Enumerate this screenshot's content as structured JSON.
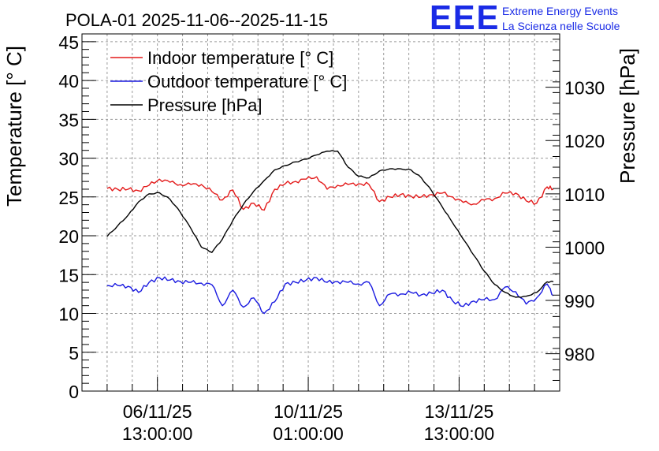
{
  "chart_data": {
    "type": "line",
    "title": "POLA-01 2025-11-06--2025-11-15",
    "ylabel_left": "Temperature [° C]",
    "ylabel_right": "Pressure [hPa]",
    "ylim_left": [
      0,
      46
    ],
    "ylim_right": [
      973,
      1040
    ],
    "yticks_left": [
      "0",
      "5",
      "10",
      "15",
      "20",
      "25",
      "30",
      "35",
      "40",
      "45"
    ],
    "yticks_right": [
      "980",
      "990",
      "1000",
      "1010",
      "1020",
      "1030"
    ],
    "xlim_hours": [
      0,
      228
    ],
    "xtick_labels": [
      {
        "hour": 36,
        "date": "06/11/25",
        "time": "13:00:00"
      },
      {
        "hour": 108,
        "date": "10/11/25",
        "time": "01:00:00"
      },
      {
        "hour": 180,
        "date": "13/11/25",
        "time": "13:00:00"
      }
    ],
    "x_hours": [
      12,
      17,
      22,
      27,
      32,
      37,
      42,
      47,
      52,
      57,
      62,
      67,
      72,
      77,
      82,
      87,
      92,
      97,
      102,
      107,
      112,
      117,
      122,
      127,
      132,
      137,
      142,
      147,
      152,
      157,
      162,
      167,
      172,
      177,
      182,
      187,
      192,
      197,
      202,
      207,
      212,
      217,
      222,
      225
    ],
    "series": [
      {
        "name": "Indoor temperature [° C]",
        "color": "#e31a1a",
        "axis": "left",
        "values": [
          26.1,
          26.0,
          26.0,
          25.8,
          26.5,
          27.3,
          26.9,
          26.6,
          26.6,
          26.6,
          25.7,
          24.6,
          25.9,
          23.4,
          24.2,
          23.3,
          26.0,
          26.7,
          27.0,
          27.3,
          27.6,
          26.0,
          26.5,
          26.6,
          26.7,
          26.6,
          24.4,
          25.0,
          25.3,
          25.1,
          25.0,
          25.3,
          25.5,
          25.0,
          24.3,
          24.1,
          24.6,
          24.8,
          25.5,
          25.5,
          24.5,
          24.2,
          26.3,
          26.0
        ]
      },
      {
        "name": "Outdoor temperature [° C]",
        "color": "#1a1ae0",
        "axis": "left",
        "values": [
          13.6,
          13.6,
          13.5,
          12.7,
          14.0,
          14.6,
          14.3,
          14.1,
          14.0,
          13.9,
          13.7,
          11.0,
          13.0,
          10.8,
          12.0,
          10.0,
          11.5,
          13.8,
          14.0,
          14.3,
          14.6,
          14.0,
          14.1,
          14.0,
          13.8,
          14.0,
          11.0,
          12.5,
          12.5,
          12.7,
          12.4,
          12.6,
          13.0,
          11.6,
          10.9,
          11.6,
          11.8,
          11.8,
          13.4,
          12.8,
          11.2,
          12.0,
          13.8,
          12.3
        ]
      },
      {
        "name": "Pressure [hPa]",
        "color": "#000000",
        "axis": "right",
        "values": [
          1002.0,
          1004.0,
          1006.0,
          1008.5,
          1010.0,
          1010.2,
          1009.0,
          1006.5,
          1003.5,
          1000.0,
          999.0,
          1001.5,
          1005.0,
          1008.0,
          1010.5,
          1012.5,
          1014.5,
          1015.3,
          1016.0,
          1016.5,
          1017.3,
          1018.0,
          1018.0,
          1015.0,
          1013.3,
          1013.0,
          1014.3,
          1014.7,
          1014.7,
          1014.5,
          1013.0,
          1010.5,
          1007.5,
          1004.5,
          1001.5,
          998.5,
          995.5,
          993.0,
          991.5,
          990.6,
          990.8,
          991.5,
          993.5,
          993.5
        ]
      }
    ]
  },
  "logo": {
    "mark": "EEE",
    "line1": "Extreme Energy Events",
    "line2": "La Scienza nelle Scuole"
  }
}
